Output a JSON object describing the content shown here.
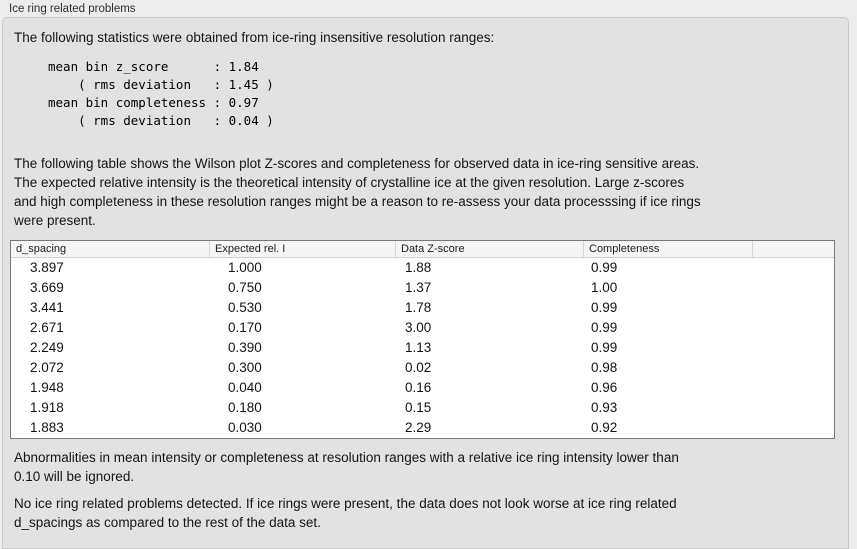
{
  "colors": {
    "outer_bg": "#ececec",
    "panel_bg": "#e2e2e2",
    "table_header_bg": "#f5f5f5",
    "table_border": "#787878",
    "text": "#141414"
  },
  "section": {
    "title": "Ice ring related problems"
  },
  "intro": "The following statistics were obtained from ice-ring insensitive resolution ranges:",
  "stats_block": "mean bin z_score      : 1.84\n    ( rms deviation   : 1.45 )\nmean bin completeness : 0.97\n    ( rms deviation   : 0.04 )",
  "stats": {
    "mean_bin_z_score": "1.84",
    "z_score_rms_deviation": "1.45",
    "mean_bin_completeness": "0.97",
    "completeness_rms_deviation": "0.04"
  },
  "table_intro": "The following table shows the Wilson plot Z-scores and completeness for observed data in ice-ring sensitive areas.\nThe expected relative intensity is the theoretical intensity of crystalline ice at the given resolution. Large z-scores\nand high completeness in these resolution ranges might be a reason to re-assess your data processsing if ice rings\nwere present.",
  "table": {
    "headers": [
      "d_spacing",
      "Expected rel. I",
      "Data Z-score",
      "Completeness",
      ""
    ],
    "rows": [
      [
        "3.897",
        "1.000",
        "1.88",
        "0.99"
      ],
      [
        "3.669",
        "0.750",
        "1.37",
        "1.00"
      ],
      [
        "3.441",
        "0.530",
        "1.78",
        "0.99"
      ],
      [
        "2.671",
        "0.170",
        "3.00",
        "0.99"
      ],
      [
        "2.249",
        "0.390",
        "1.13",
        "0.99"
      ],
      [
        "2.072",
        "0.300",
        "0.02",
        "0.98"
      ],
      [
        "1.948",
        "0.040",
        "0.16",
        "0.96"
      ],
      [
        "1.918",
        "0.180",
        "0.15",
        "0.93"
      ],
      [
        "1.883",
        "0.030",
        "2.29",
        "0.92"
      ]
    ]
  },
  "ignore_note": "Abnormalities in mean intensity or completeness at resolution ranges with a relative ice ring intensity lower than\n0.10 will be ignored.",
  "conclusion": "No ice ring related problems detected. If ice rings were present, the data does not look worse at ice ring related\nd_spacings as compared to the rest of the data set."
}
